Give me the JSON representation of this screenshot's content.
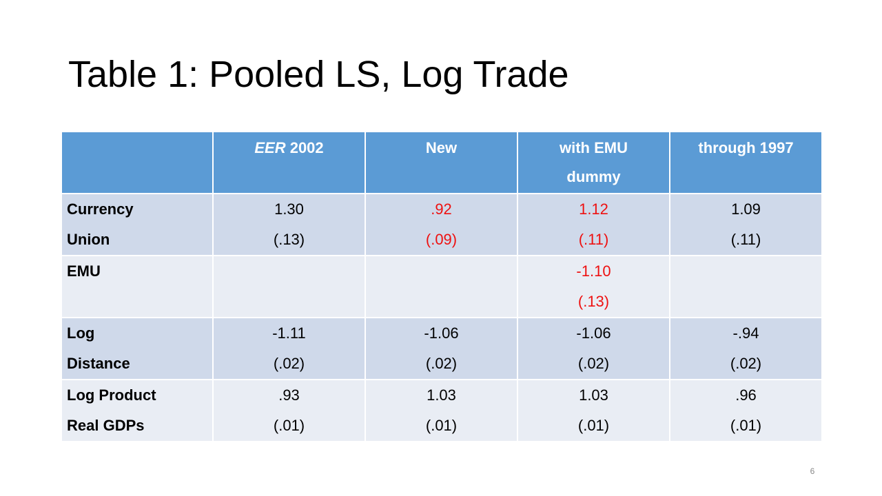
{
  "slide": {
    "title": "Table 1: Pooled LS, Log Trade",
    "page_number": "6"
  },
  "table": {
    "headers": [
      {
        "line1_italic": "",
        "line1_plain": "",
        "line2": ""
      },
      {
        "line1_italic": "EER",
        "line1_plain": " 2002",
        "line2": ""
      },
      {
        "line1_italic": "",
        "line1_plain": "New",
        "line2": ""
      },
      {
        "line1_italic": "",
        "line1_plain": "with EMU",
        "line2": "dummy"
      },
      {
        "line1_italic": "",
        "line1_plain": "through 1997",
        "line2": ""
      }
    ],
    "rows": [
      {
        "label_line1": "Currency",
        "label_line2": "Union",
        "cells": [
          {
            "coef": "1.30",
            "se": "(.13)",
            "highlight": false
          },
          {
            "coef": ".92",
            "se": "(.09)",
            "highlight": true
          },
          {
            "coef": "1.12",
            "se": "(.11)",
            "highlight": true
          },
          {
            "coef": "1.09",
            "se": "(.11)",
            "highlight": false
          }
        ]
      },
      {
        "label_line1": "EMU",
        "label_line2": "",
        "cells": [
          {
            "coef": "",
            "se": "",
            "highlight": false
          },
          {
            "coef": "",
            "se": "",
            "highlight": false
          },
          {
            "coef": "-1.10",
            "se": "(.13)",
            "highlight": true
          },
          {
            "coef": "",
            "se": "",
            "highlight": false
          }
        ]
      },
      {
        "label_line1": "Log",
        "label_line2": "Distance",
        "cells": [
          {
            "coef": "-1.11",
            "se": "(.02)",
            "highlight": false
          },
          {
            "coef": "-1.06",
            "se": "(.02)",
            "highlight": false
          },
          {
            "coef": "-1.06",
            "se": "(.02)",
            "highlight": false
          },
          {
            "coef": "-.94",
            "se": "(.02)",
            "highlight": false
          }
        ]
      },
      {
        "label_line1": "Log Product",
        "label_line2": "Real GDPs",
        "cells": [
          {
            "coef": ".93",
            "se": "(.01)",
            "highlight": false
          },
          {
            "coef": "1.03",
            "se": "(.01)",
            "highlight": false
          },
          {
            "coef": "1.03",
            "se": "(.01)",
            "highlight": false
          },
          {
            "coef": ".96",
            "se": "(.01)",
            "highlight": false
          }
        ]
      }
    ]
  },
  "colors": {
    "header_bg": "#5b9bd5",
    "row_band_dark": "#cfd9ea",
    "row_band_light": "#e9edf4",
    "highlight_text": "#ee1111"
  }
}
